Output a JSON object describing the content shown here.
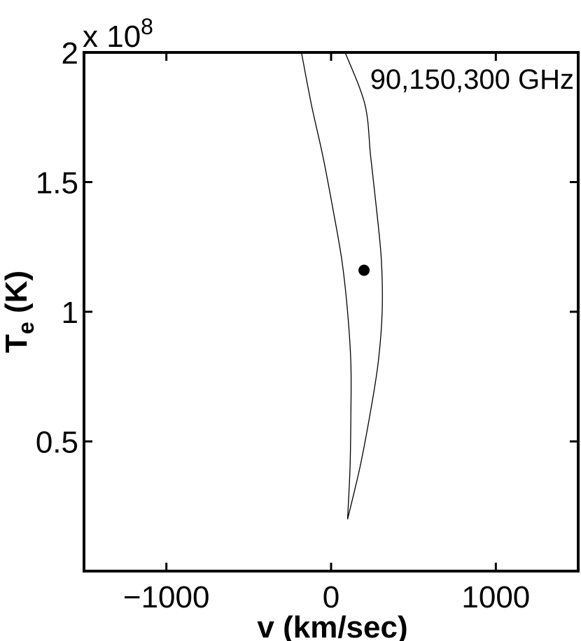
{
  "chart_data": {
    "type": "line",
    "title": "",
    "xlabel": "v (km/sec)",
    "ylabel_main": "T",
    "ylabel_sub": "e",
    "ylabel_unit": " (K)",
    "y_exponent_label": "x 10",
    "y_exponent_power": "8",
    "y_scale": 100000000,
    "xlim": [
      -1500,
      1500
    ],
    "ylim": [
      0,
      2
    ],
    "grid": false,
    "x_ticks": [
      {
        "value": -1000,
        "label": "−1000"
      },
      {
        "value": 0,
        "label": "0"
      },
      {
        "value": 1000,
        "label": "1000"
      }
    ],
    "y_ticks": [
      {
        "value": 0.5,
        "label": "0.5"
      },
      {
        "value": 1,
        "label": "1"
      },
      {
        "value": 1.5,
        "label": "1.5"
      },
      {
        "value": 2,
        "label": "2"
      }
    ],
    "annotation": "90,150,300 GHz",
    "series": [
      {
        "color": "#000000",
        "points": [
          [
            -180,
            2.0
          ],
          [
            -120,
            1.8
          ],
          [
            -50,
            1.6
          ],
          [
            10,
            1.4
          ],
          [
            65,
            1.2
          ],
          [
            100,
            1.0
          ],
          [
            120,
            0.8
          ],
          [
            120,
            0.6
          ],
          [
            115,
            0.4
          ],
          [
            100,
            0.2
          ]
        ]
      },
      {
        "color": "#000000",
        "points": [
          [
            100,
            0.2
          ],
          [
            175,
            0.4
          ],
          [
            235,
            0.6
          ],
          [
            285,
            0.8
          ],
          [
            310,
            1.0
          ],
          [
            305,
            1.2
          ],
          [
            275,
            1.4
          ],
          [
            240,
            1.6
          ],
          [
            205,
            1.8
          ],
          [
            85,
            2.0
          ]
        ]
      }
    ],
    "points": [
      {
        "x": 200,
        "y": 1.16,
        "color": "#000000"
      }
    ]
  }
}
